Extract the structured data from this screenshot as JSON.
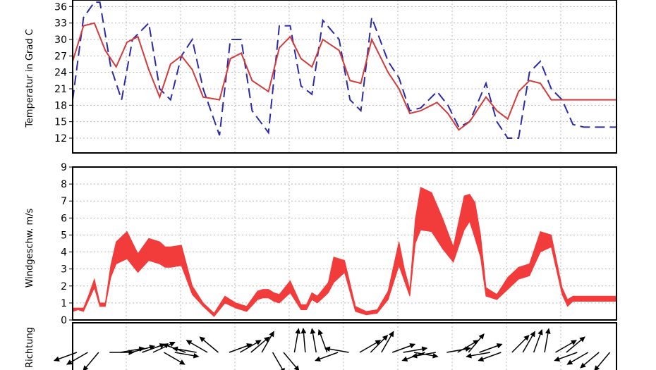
{
  "chart_data": [
    {
      "type": "line",
      "ylabel": "Temperatur in Grad C",
      "yticks": [
        12,
        15,
        18,
        21,
        24,
        27,
        30,
        33,
        36
      ],
      "ylim": [
        9.3,
        37.2
      ],
      "xlim": [
        0,
        100
      ],
      "grid": true,
      "series": [
        {
          "color": "#2a2aa8",
          "style": "dashed",
          "x": [
            0,
            2,
            4,
            5,
            7,
            9,
            11,
            14,
            16,
            18,
            20,
            22,
            24,
            27,
            29,
            31,
            33,
            36,
            38,
            40,
            42,
            44,
            46,
            49,
            51,
            53,
            55,
            58,
            60,
            62,
            64,
            67,
            69,
            71,
            73,
            76,
            78,
            80,
            82,
            84,
            86,
            88,
            90,
            92,
            94,
            96,
            98,
            100
          ],
          "values": [
            19,
            34,
            36.8,
            36.8,
            25,
            19,
            30,
            33,
            21,
            19,
            27,
            30,
            21,
            12.5,
            30,
            30,
            17,
            13,
            32.5,
            32.5,
            21.5,
            20,
            33.5,
            30,
            19,
            17,
            34,
            26,
            23,
            17,
            17.5,
            20.5,
            18,
            14,
            15,
            22,
            15,
            12,
            12,
            24,
            26,
            21,
            19,
            14.5,
            14,
            14,
            14,
            14
          ]
        },
        {
          "color": "#d43a3a",
          "style": "solid",
          "x": [
            0,
            2,
            4,
            6,
            8,
            10,
            12,
            14,
            16,
            18,
            20,
            22,
            24,
            27,
            29,
            31,
            33,
            36,
            38,
            40,
            42,
            44,
            46,
            49,
            51,
            53,
            55,
            58,
            60,
            62,
            64,
            67,
            69,
            71,
            73,
            76,
            78,
            80,
            82,
            84,
            86,
            88,
            90,
            92,
            94,
            96,
            98,
            100
          ],
          "values": [
            26,
            32.5,
            33,
            28,
            25,
            29.5,
            30.5,
            24.5,
            19.5,
            25.5,
            27,
            24.5,
            19.5,
            19,
            26.5,
            27.5,
            22.5,
            20.5,
            28.5,
            30.5,
            26.5,
            25,
            30,
            28,
            22.5,
            22,
            30,
            24,
            21,
            16.5,
            17,
            18.5,
            16.5,
            13.5,
            15,
            19.5,
            17,
            15.5,
            20.5,
            22.5,
            22,
            19,
            19,
            19,
            19,
            19,
            19,
            19
          ]
        }
      ]
    },
    {
      "type": "area",
      "ylabel": "Windgeschw. m/s",
      "yticks": [
        0,
        1,
        2,
        3,
        4,
        5,
        6,
        7,
        8,
        9
      ],
      "ylim": [
        0,
        9
      ],
      "xlim": [
        0,
        100
      ],
      "grid": true,
      "color": "#f23c3c",
      "x": [
        0,
        1,
        2,
        3,
        4,
        5,
        6,
        7,
        8,
        10,
        12,
        14,
        16,
        17,
        18,
        20,
        22,
        24,
        26,
        28,
        30,
        32,
        34,
        35,
        36,
        37,
        38,
        40,
        42,
        43,
        44,
        45,
        46,
        47,
        48,
        50,
        52,
        54,
        56,
        58,
        60,
        61,
        62,
        63,
        64,
        66,
        68,
        70,
        72,
        73,
        74,
        75,
        76,
        78,
        80,
        82,
        84,
        86,
        88,
        90,
        91,
        92,
        93,
        94,
        95,
        96,
        97,
        98,
        100
      ],
      "low": [
        0.5,
        0.6,
        0.5,
        1.2,
        1.9,
        0.8,
        0.8,
        2.5,
        3.3,
        3.6,
        2.8,
        3.5,
        3.3,
        3.1,
        3.1,
        3.2,
        1.5,
        0.8,
        0.2,
        1.0,
        0.7,
        0.5,
        1.2,
        1.3,
        1.3,
        1.1,
        1.0,
        1.6,
        0.6,
        0.6,
        1.2,
        1.0,
        1.3,
        1.6,
        2.2,
        2.8,
        0.5,
        0.3,
        0.4,
        1.2,
        3.2,
        2.3,
        1.4,
        4.5,
        5.3,
        5.2,
        4.2,
        3.4,
        5.3,
        5.8,
        4.8,
        3.7,
        1.4,
        1.2,
        1.8,
        2.4,
        2.6,
        4.0,
        4.3,
        1.5,
        0.8,
        1.1,
        1.1,
        1.1,
        1.1,
        1.1,
        1.1,
        1.1,
        1.1
      ],
      "high": [
        0.7,
        0.7,
        0.7,
        1.5,
        2.4,
        1.0,
        1.0,
        3.2,
        4.6,
        5.2,
        3.9,
        4.8,
        4.6,
        4.3,
        4.3,
        4.4,
        2.0,
        1.0,
        0.4,
        1.4,
        1.0,
        0.8,
        1.7,
        1.8,
        1.8,
        1.6,
        1.5,
        2.3,
        0.9,
        0.9,
        1.6,
        1.4,
        1.8,
        2.2,
        3.7,
        3.5,
        0.8,
        0.5,
        0.6,
        1.7,
        4.6,
        3.0,
        1.8,
        5.9,
        7.8,
        7.5,
        6.0,
        4.3,
        7.3,
        7.4,
        6.9,
        5.0,
        1.9,
        1.5,
        2.5,
        3.1,
        3.3,
        5.2,
        5.0,
        1.9,
        1.2,
        1.4,
        1.4,
        1.4,
        1.4,
        1.4,
        1.4,
        1.4,
        1.4
      ]
    },
    {
      "type": "vector",
      "ylabel": "Richtung",
      "xlim": [
        0,
        100
      ],
      "grid": true,
      "color": "#000000",
      "x": [
        0,
        2,
        4,
        6,
        8,
        10,
        12,
        14,
        16,
        18,
        20,
        22,
        24,
        26,
        28,
        30,
        32,
        34,
        36,
        38,
        40,
        42,
        44,
        46,
        48,
        50,
        52,
        54,
        56,
        58,
        60,
        62,
        64,
        66,
        68,
        70,
        72,
        74,
        76,
        78,
        80,
        82,
        84,
        86,
        88,
        90,
        92,
        94,
        96,
        98
      ],
      "angle_deg": [
        200,
        210,
        230,
        0,
        10,
        15,
        20,
        25,
        330,
        350,
        160,
        170,
        150,
        140,
        20,
        30,
        40,
        60,
        300,
        310,
        80,
        95,
        100,
        110,
        200,
        170,
        30,
        45,
        60,
        20,
        10,
        350,
        200,
        190,
        10,
        30,
        50,
        20,
        190,
        200,
        45,
        60,
        70,
        80,
        30,
        40,
        200,
        210,
        220,
        230
      ]
    }
  ]
}
